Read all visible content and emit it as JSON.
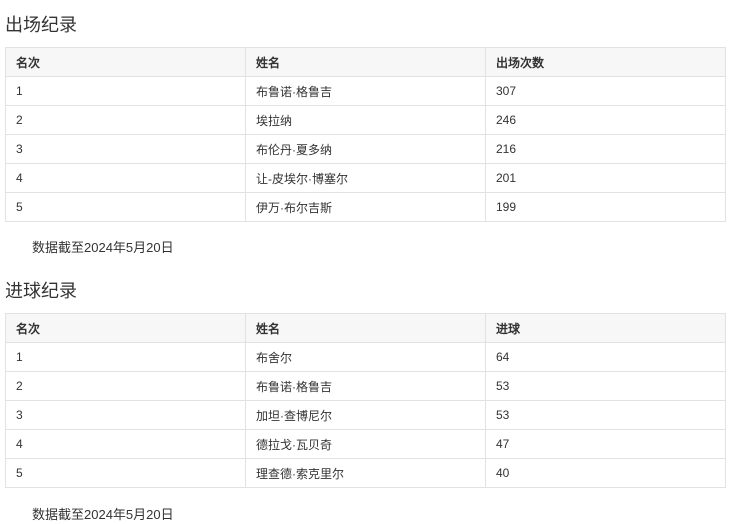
{
  "appearances": {
    "title": "出场纪录",
    "headers": [
      "名次",
      "姓名",
      "出场次数"
    ],
    "rows": [
      [
        "1",
        "布鲁诺·格鲁吉",
        "307"
      ],
      [
        "2",
        "埃拉纳",
        "246"
      ],
      [
        "3",
        "布伦丹·夏多纳",
        "216"
      ],
      [
        "4",
        "让-皮埃尔·博塞尔",
        "201"
      ],
      [
        "5",
        "伊万·布尔吉斯",
        "199"
      ]
    ],
    "note": "数据截至2024年5月20日"
  },
  "goals": {
    "title": "进球纪录",
    "headers": [
      "名次",
      "姓名",
      "进球"
    ],
    "rows": [
      [
        "1",
        "布舍尔",
        "64"
      ],
      [
        "2",
        "布鲁诺·格鲁吉",
        "53"
      ],
      [
        "3",
        "加坦·查博尼尔",
        "53"
      ],
      [
        "4",
        "德拉戈·瓦贝奇",
        "47"
      ],
      [
        "5",
        "理查德·索克里尔",
        "40"
      ]
    ],
    "note": "数据截至2024年5月20日"
  }
}
